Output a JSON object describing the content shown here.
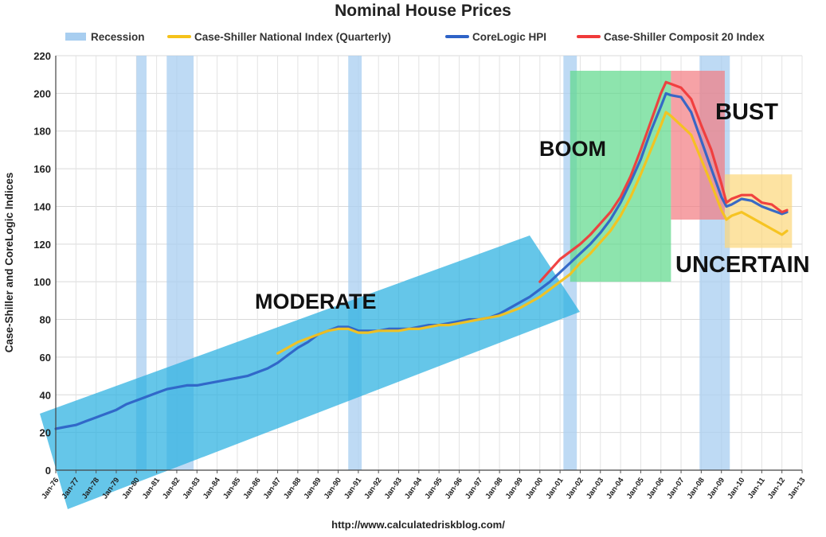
{
  "chart_data": {
    "type": "line",
    "title": "Nominal House Prices",
    "ylabel": "Case-Shiller and CoreLogic Indices",
    "xlabel": "",
    "source": "http://www.calculatedriskblog.com/",
    "ylim": [
      0,
      220
    ],
    "yticks": [
      0,
      20,
      40,
      60,
      80,
      100,
      120,
      140,
      160,
      180,
      200,
      220
    ],
    "xlim": [
      "1976-01",
      "2013-01"
    ],
    "xtick_labels": [
      "Jan-76",
      "Jan-77",
      "Jan-78",
      "Jan-79",
      "Jan-80",
      "Jan-81",
      "Jan-82",
      "Jan-83",
      "Jan-84",
      "Jan-85",
      "Jan-86",
      "Jan-87",
      "Jan-88",
      "Jan-89",
      "Jan-90",
      "Jan-91",
      "Jan-92",
      "Jan-93",
      "Jan-94",
      "Jan-95",
      "Jan-96",
      "Jan-97",
      "Jan-98",
      "Jan-99",
      "Jan-00",
      "Jan-01",
      "Jan-02",
      "Jan-03",
      "Jan-04",
      "Jan-05",
      "Jan-06",
      "Jan-07",
      "Jan-08",
      "Jan-09",
      "Jan-10",
      "Jan-11",
      "Jan-12",
      "Jan-13"
    ],
    "grid": true,
    "legend_position": "top",
    "legend": [
      {
        "label": "Recession",
        "kind": "band",
        "color": "#a8cef0"
      },
      {
        "label": "Case-Shiller National Index (Quarterly)",
        "kind": "line",
        "color": "#f5c21b"
      },
      {
        "label": "CoreLogic HPI",
        "kind": "line",
        "color": "#2e63c7"
      },
      {
        "label": "Case-Shiller Composit 20 Index",
        "kind": "line",
        "color": "#f03a3a"
      }
    ],
    "recessions": [
      {
        "start": "1980-01",
        "end": "1980-07"
      },
      {
        "start": "1981-07",
        "end": "1982-11"
      },
      {
        "start": "1990-07",
        "end": "1991-03"
      },
      {
        "start": "2001-03",
        "end": "2001-11"
      },
      {
        "start": "2007-12",
        "end": "2009-06"
      }
    ],
    "annotations": [
      {
        "label": "MODERATE",
        "color": "#2ab0e0",
        "y_range": "sloped band 1976-2001"
      },
      {
        "label": "BOOM",
        "color": "#5cd88a",
        "x_range": [
          "2001-07",
          "2006-07"
        ],
        "y_range": [
          100,
          212
        ]
      },
      {
        "label": "BUST",
        "color": "#f27a80",
        "x_range": [
          "2006-07",
          "2009-03"
        ],
        "y_range": [
          133,
          212
        ]
      },
      {
        "label": "UNCERTAIN",
        "color": "#fcd77a",
        "x_range": [
          "2009-03",
          "2012-07"
        ],
        "y_range": [
          118,
          157
        ]
      }
    ],
    "series": [
      {
        "name": "CoreLogic HPI",
        "color": "#2e63c7",
        "x": [
          "1976-01",
          "1976-07",
          "1977-01",
          "1977-07",
          "1978-01",
          "1978-07",
          "1979-01",
          "1979-07",
          "1980-01",
          "1980-07",
          "1981-01",
          "1981-07",
          "1982-01",
          "1982-07",
          "1983-01",
          "1983-07",
          "1984-01",
          "1984-07",
          "1985-01",
          "1985-07",
          "1986-01",
          "1986-07",
          "1987-01",
          "1987-07",
          "1988-01",
          "1988-07",
          "1989-01",
          "1989-07",
          "1990-01",
          "1990-07",
          "1991-01",
          "1991-07",
          "1992-01",
          "1992-07",
          "1993-01",
          "1993-07",
          "1994-01",
          "1994-07",
          "1995-01",
          "1995-07",
          "1996-01",
          "1996-07",
          "1997-01",
          "1997-07",
          "1998-01",
          "1998-07",
          "1999-01",
          "1999-07",
          "2000-01",
          "2000-07",
          "2001-01",
          "2001-07",
          "2002-01",
          "2002-07",
          "2003-01",
          "2003-07",
          "2004-01",
          "2004-07",
          "2005-01",
          "2005-07",
          "2006-01",
          "2006-04",
          "2006-07",
          "2007-01",
          "2007-07",
          "2008-01",
          "2008-07",
          "2009-01",
          "2009-04",
          "2009-07",
          "2010-01",
          "2010-07",
          "2011-01",
          "2011-07",
          "2012-01",
          "2012-04"
        ],
        "values": [
          22,
          23,
          24,
          26,
          28,
          30,
          32,
          35,
          37,
          39,
          41,
          43,
          44,
          45,
          45,
          46,
          47,
          48,
          49,
          50,
          52,
          54,
          57,
          61,
          65,
          68,
          72,
          74,
          76,
          76,
          74,
          74,
          74,
          75,
          75,
          75,
          76,
          77,
          77,
          78,
          79,
          80,
          80,
          81,
          83,
          86,
          89,
          92,
          96,
          100,
          105,
          110,
          115,
          120,
          126,
          133,
          142,
          153,
          165,
          180,
          193,
          200,
          199,
          198,
          190,
          175,
          160,
          145,
          140,
          141,
          144,
          143,
          140,
          138,
          136,
          137
        ]
      },
      {
        "name": "Case-Shiller National Index (Quarterly)",
        "color": "#f5c21b",
        "x": [
          "1987-01",
          "1987-07",
          "1988-01",
          "1988-07",
          "1989-01",
          "1989-07",
          "1990-01",
          "1990-07",
          "1991-01",
          "1991-07",
          "1992-01",
          "1992-07",
          "1993-01",
          "1993-07",
          "1994-01",
          "1994-07",
          "1995-01",
          "1995-07",
          "1996-01",
          "1996-07",
          "1997-01",
          "1997-07",
          "1998-01",
          "1998-07",
          "1999-01",
          "1999-07",
          "2000-01",
          "2000-07",
          "2001-01",
          "2001-07",
          "2002-01",
          "2002-07",
          "2003-01",
          "2003-07",
          "2004-01",
          "2004-07",
          "2005-01",
          "2005-07",
          "2006-01",
          "2006-04",
          "2006-07",
          "2007-01",
          "2007-07",
          "2008-01",
          "2008-07",
          "2009-01",
          "2009-04",
          "2009-07",
          "2010-01",
          "2010-07",
          "2011-01",
          "2011-07",
          "2012-01",
          "2012-04"
        ],
        "values": [
          62,
          65,
          68,
          70,
          72,
          74,
          75,
          75,
          73,
          73,
          74,
          74,
          74,
          75,
          75,
          76,
          77,
          77,
          78,
          79,
          80,
          81,
          82,
          84,
          86,
          89,
          92,
          96,
          100,
          104,
          110,
          115,
          121,
          127,
          135,
          145,
          157,
          170,
          183,
          190,
          188,
          183,
          178,
          165,
          152,
          138,
          133,
          135,
          137,
          134,
          131,
          128,
          125,
          127
        ]
      },
      {
        "name": "Case-Shiller Composit 20 Index",
        "color": "#f03a3a",
        "x": [
          "2000-01",
          "2000-07",
          "2001-01",
          "2001-07",
          "2002-01",
          "2002-07",
          "2003-01",
          "2003-07",
          "2004-01",
          "2004-07",
          "2005-01",
          "2005-07",
          "2006-01",
          "2006-04",
          "2006-07",
          "2007-01",
          "2007-07",
          "2008-01",
          "2008-07",
          "2009-01",
          "2009-04",
          "2009-07",
          "2010-01",
          "2010-07",
          "2011-01",
          "2011-07",
          "2012-01",
          "2012-04"
        ],
        "values": [
          100,
          106,
          112,
          116,
          120,
          125,
          131,
          137,
          145,
          156,
          170,
          185,
          200,
          206,
          205,
          203,
          197,
          183,
          170,
          152,
          142,
          144,
          146,
          146,
          142,
          141,
          137,
          138
        ]
      }
    ]
  }
}
